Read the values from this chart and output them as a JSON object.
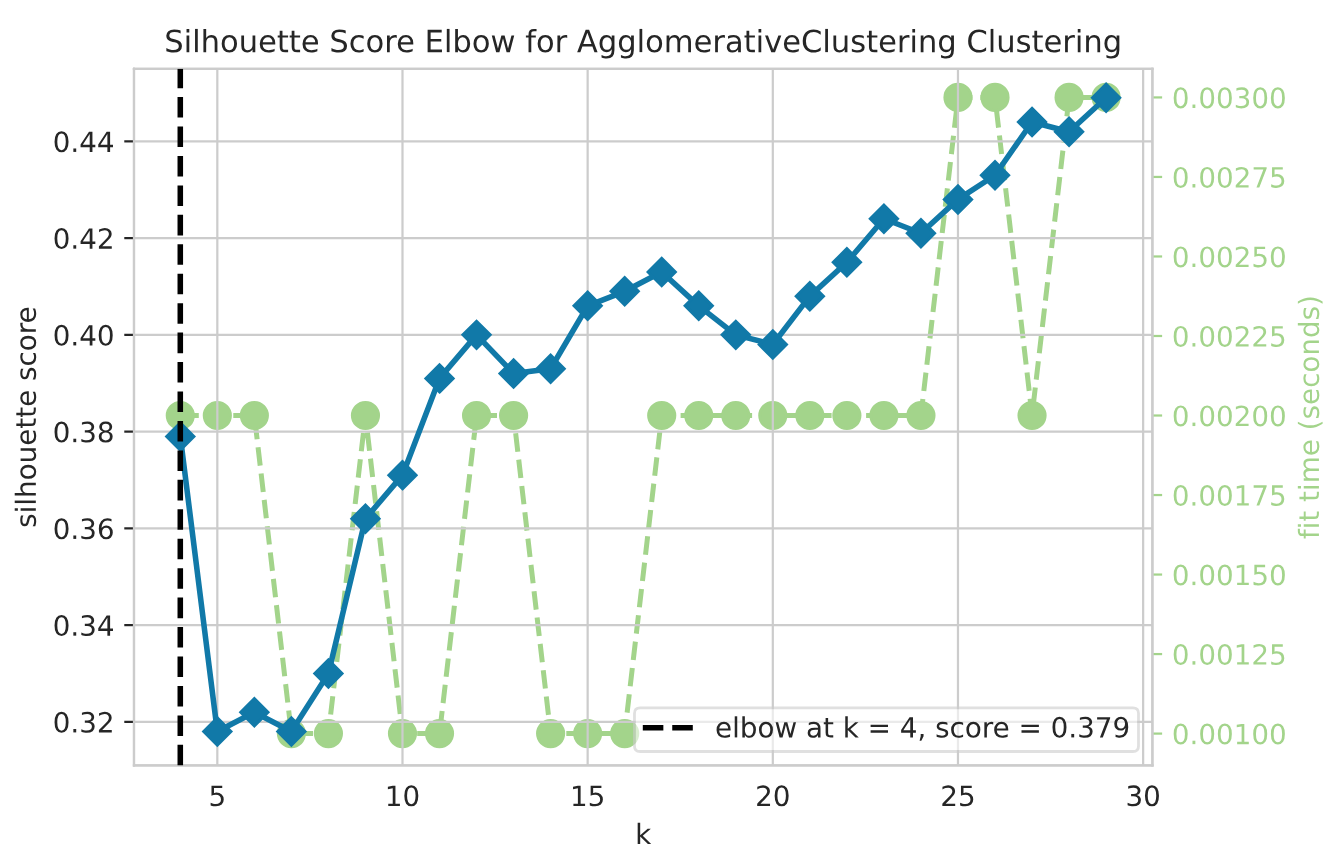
{
  "chart_data": {
    "type": "line",
    "title": "Silhouette Score Elbow for AgglomerativeClustering Clustering",
    "xlabel": "k",
    "ylabel": "silhouette score",
    "y2label": "fit time (seconds)",
    "x": [
      4,
      5,
      6,
      7,
      8,
      9,
      10,
      11,
      12,
      13,
      14,
      15,
      16,
      17,
      18,
      19,
      20,
      21,
      22,
      23,
      24,
      25,
      26,
      27,
      28,
      29
    ],
    "series": [
      {
        "color": "#1179a8",
        "marker": "diamond",
        "line_style": "solid",
        "values": [
          0.379,
          0.318,
          0.322,
          0.318,
          0.33,
          0.362,
          0.371,
          0.391,
          0.4,
          0.392,
          0.393,
          0.406,
          0.409,
          0.413,
          0.406,
          0.4,
          0.398,
          0.408,
          0.415,
          0.424,
          0.421,
          0.428,
          0.433,
          0.444,
          0.442,
          0.449
        ]
      },
      {
        "color": "#a3d48b",
        "marker": "circle",
        "line_style": "dashed",
        "axis": "y2",
        "values": [
          0.002,
          0.002,
          0.002,
          0.001,
          0.001,
          0.002,
          0.001,
          0.001,
          0.002,
          0.002,
          0.001,
          0.001,
          0.001,
          0.002,
          0.002,
          0.002,
          0.002,
          0.002,
          0.002,
          0.002,
          0.002,
          0.003,
          0.003,
          0.002,
          0.003,
          0.003
        ]
      }
    ],
    "xlim": [
      2.75,
      30.25
    ],
    "xticks": [
      5,
      10,
      15,
      20,
      25,
      30
    ],
    "ylim": [
      0.311,
      0.455
    ],
    "yticks": [
      {
        "value": 0.32,
        "label": "0.32"
      },
      {
        "value": 0.34,
        "label": "0.34"
      },
      {
        "value": 0.36,
        "label": "0.36"
      },
      {
        "value": 0.38,
        "label": "0.38"
      },
      {
        "value": 0.4,
        "label": "0.40"
      },
      {
        "value": 0.42,
        "label": "0.42"
      },
      {
        "value": 0.44,
        "label": "0.44"
      }
    ],
    "y2lim": [
      0.0009,
      0.00309
    ],
    "y2ticks": [
      {
        "value": 0.001,
        "label": "0.00100"
      },
      {
        "value": 0.00125,
        "label": "0.00125"
      },
      {
        "value": 0.0015,
        "label": "0.00150"
      },
      {
        "value": 0.00175,
        "label": "0.00175"
      },
      {
        "value": 0.002,
        "label": "0.00200"
      },
      {
        "value": 0.00225,
        "label": "0.00225"
      },
      {
        "value": 0.0025,
        "label": "0.00250"
      },
      {
        "value": 0.00275,
        "label": "0.00275"
      },
      {
        "value": 0.003,
        "label": "0.00300"
      }
    ],
    "ref_lines": [
      {
        "axis": "x",
        "value": 4,
        "label": "elbow at k = 4, score = 0.379",
        "color": "#000000",
        "line_style": "dashed"
      }
    ],
    "grid": true,
    "legend": "bottom right"
  }
}
